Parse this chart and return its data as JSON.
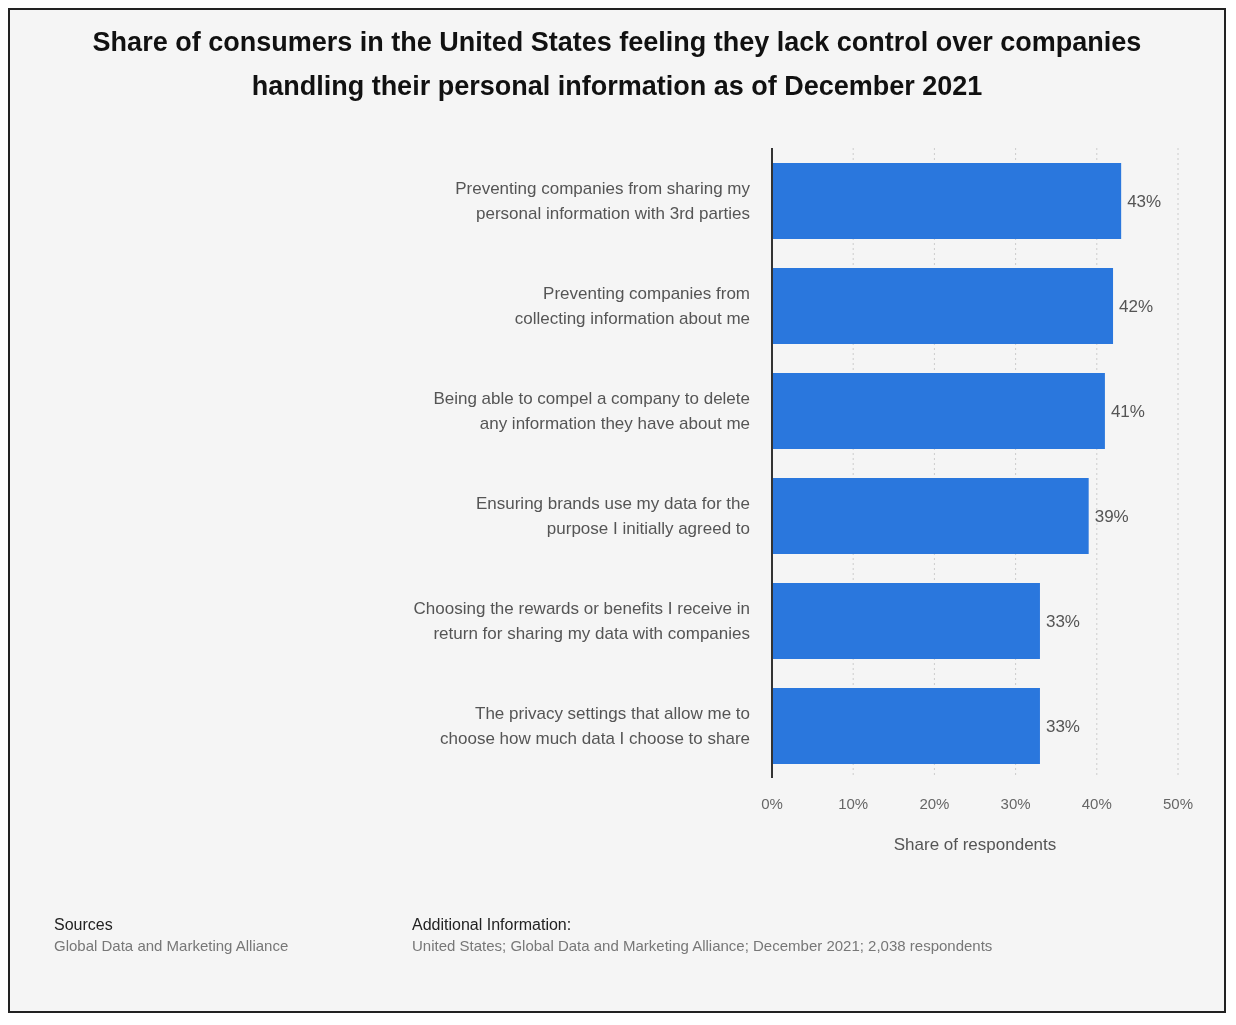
{
  "chart_data": {
    "type": "bar",
    "orientation": "horizontal",
    "title": "Share of consumers in the United States feeling they lack control over companies handling their personal information as of December 2021",
    "categories": [
      "Preventing companies from sharing my personal information with 3rd parties",
      "Preventing companies from collecting information about me",
      "Being able to compel a company to delete any information they have about me",
      "Ensuring brands use my data for the purpose I initially agreed to",
      "Choosing the rewards or benefits I receive in return for sharing my data with companies",
      "The privacy settings that allow me to choose how much data I choose to share"
    ],
    "values": [
      43,
      42,
      41,
      39,
      33,
      33
    ],
    "value_labels": [
      "43%",
      "42%",
      "41%",
      "39%",
      "33%",
      "33%"
    ],
    "color": "#2a77dd",
    "xlabel": "Share of respondents",
    "xlim": [
      0,
      50
    ],
    "xticks": [
      {
        "value": 0,
        "label": "0%"
      },
      {
        "value": 10,
        "label": "10%"
      },
      {
        "value": 20,
        "label": "20%"
      },
      {
        "value": 30,
        "label": "30%"
      },
      {
        "value": 40,
        "label": "40%"
      },
      {
        "value": 50,
        "label": "50%"
      }
    ],
    "grid": "x",
    "annotations": [
      "Sources",
      "Global Data and Marketing Alliance",
      "Additional Information:",
      "United States; Global Data and Marketing Alliance; December 2021; 2,038 respondents"
    ]
  }
}
